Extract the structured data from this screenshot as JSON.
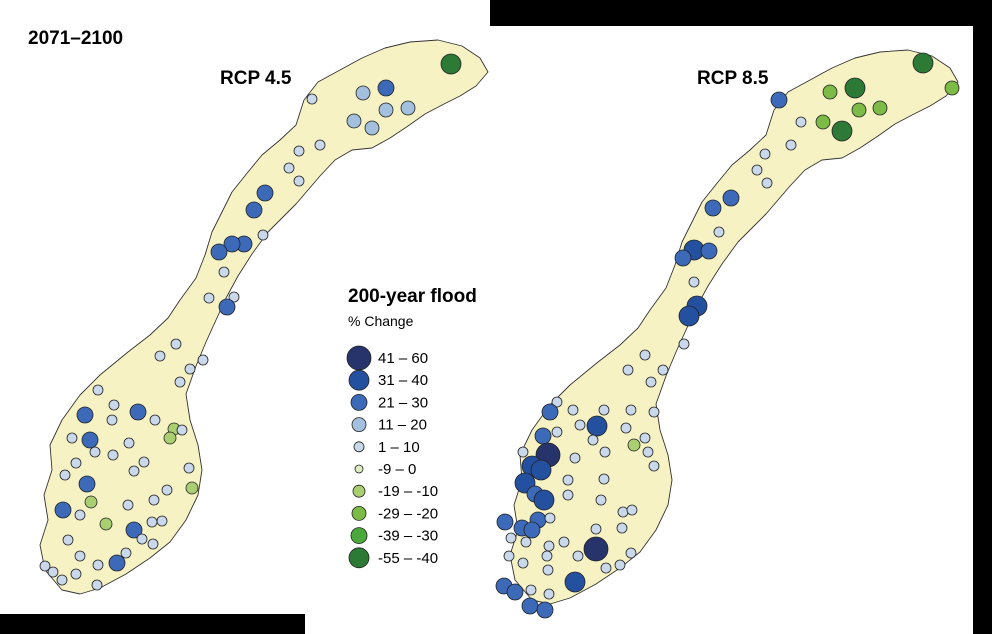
{
  "period": "2071–2100",
  "scenarios": [
    {
      "label": "RCP 4.5"
    },
    {
      "label": "RCP 8.5"
    }
  ],
  "legend": {
    "title": "200-year flood",
    "subtitle": "% Change",
    "classes": [
      {
        "label": "41 – 60",
        "color": "#27336b"
      },
      {
        "label": "31 – 40",
        "color": "#2450a0"
      },
      {
        "label": "21 – 30",
        "color": "#3c6ab8"
      },
      {
        "label": "11 – 20",
        "color": "#a4c0df"
      },
      {
        "label": "1 – 10",
        "color": "#c9d8ea"
      },
      {
        "label": "-9 – 0",
        "color": "#dfecc0"
      },
      {
        "label": "-19 – -10",
        "color": "#a9cf72"
      },
      {
        "label": "-29 – -20",
        "color": "#7cbc46"
      },
      {
        "label": "-39 – -30",
        "color": "#4aa93a"
      },
      {
        "label": "-55 – -40",
        "color": "#2d7a36"
      }
    ]
  }
}
